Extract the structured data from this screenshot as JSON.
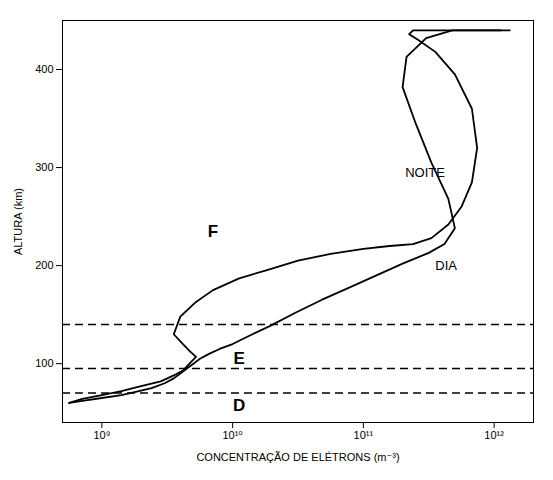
{
  "chart_data": {
    "type": "line",
    "xlabel": "CONCENTRAÇÃO DE ELÉTRONS (m⁻³)",
    "ylabel": "ALTURA (km)",
    "log": "x",
    "grid": false,
    "xlim": [
      500000000.0,
      2000000000000.0
    ],
    "ylim": [
      40,
      450
    ],
    "xticks": [
      {
        "value": 1000000000.0,
        "label": "10⁹"
      },
      {
        "value": 10000000000.0,
        "label": "10¹⁰"
      },
      {
        "value": 100000000000.0,
        "label": "10¹¹"
      },
      {
        "value": 1000000000000.0,
        "label": "10¹²"
      }
    ],
    "yticks": [
      100,
      200,
      300,
      400
    ],
    "hlines": {
      "values": [
        140,
        95,
        70
      ],
      "color": "#000000",
      "line_style": "dashed"
    },
    "annotations": [
      {
        "text": "F",
        "x": 7079458000.0,
        "y": 235
      },
      {
        "text": "E",
        "x": 11220180000.0,
        "y": 105
      },
      {
        "text": "D",
        "x": 11220180000.0,
        "y": 57
      },
      {
        "text": "NOITE",
        "x": 208929600000.0,
        "y": 295
      },
      {
        "text": "DIA",
        "x": 354813400000.0,
        "y": 200
      }
    ],
    "series": [
      {
        "color": "#000000",
        "x": [
          562341300.0,
          707945800.0,
          1000000000.0,
          1412538000.0,
          1995262000.0,
          2818383000.0,
          3548134000.0,
          4168694000.0,
          4677351000.0,
          5248075000.0,
          4677351000.0,
          4168694000.0,
          3548134000.0,
          3981072000.0,
          5248075000.0,
          7079458000.0,
          11220180000.0,
          17782790000.0,
          31622780000.0,
          56234130000.0,
          100000000000.0,
          158489300000.0,
          239883300000.0,
          331131100000.0,
          446683600000.0,
          562341300000.0,
          676083000000.0,
          741310200000.0,
          676083000000.0,
          501187200000.0,
          354813400000.0,
          263026800000.0,
          223872100000.0,
          239883300000.0,
          331131100000.0,
          501187200000.0,
          741310200000.0,
          1000000000000.0,
          1122018000000.0
        ],
        "values": [
          60,
          64,
          68,
          72,
          77,
          82,
          88,
          93,
          100,
          107,
          113,
          120,
          130,
          148,
          163,
          175,
          187,
          195,
          205,
          212,
          217,
          220,
          222,
          228,
          242,
          260,
          285,
          320,
          360,
          395,
          418,
          430,
          436,
          440,
          440,
          440,
          440,
          440,
          440
        ]
      },
      {
        "color": "#000000",
        "x": [
          562341300.0,
          707945800.0,
          1000000000.0,
          1412538000.0,
          1778279000.0,
          2398833000.0,
          3019952000.0,
          3548134000.0,
          3981072000.0,
          4466836000.0,
          5011872000.0,
          5623413000.0,
          6606934000.0,
          7943282000.0,
          10000000000.0,
          13182570000.0,
          19054610000.0,
          30199520000.0,
          47863010000.0,
          79432820000.0,
          125892500000.0,
          199526200000.0,
          316227800000.0,
          416869400000.0,
          501187200000.0,
          446683600000.0,
          331131100000.0,
          251188600000.0,
          199526200000.0,
          213796200000.0,
          301995200000.0,
          478630100000.0,
          758577600000.0,
          1122018000000.0,
          1318257000000.0,
          1258925000000.0,
          1000000000000.0,
          831763800000.0,
          758577600000.0,
          831763800000.0,
          1122018000000.0,
          1318257000000.0
        ],
        "values": [
          60,
          62,
          65,
          68,
          71,
          75,
          80,
          85,
          90,
          95,
          100,
          105,
          110,
          115,
          120,
          128,
          138,
          152,
          165,
          178,
          190,
          202,
          213,
          222,
          238,
          268,
          305,
          345,
          382,
          413,
          432,
          440,
          440,
          440,
          440,
          440,
          440,
          440,
          440,
          440,
          440,
          440
        ]
      }
    ]
  }
}
